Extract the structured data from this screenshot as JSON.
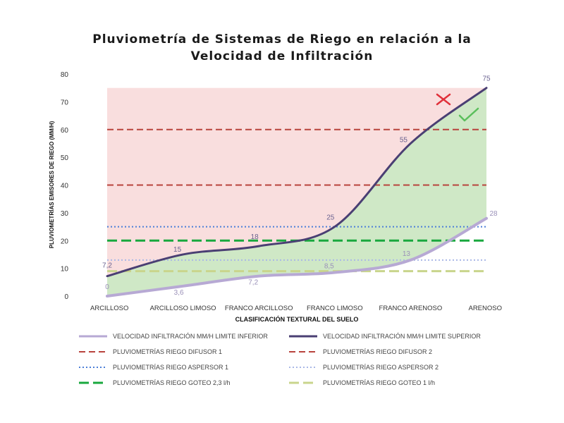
{
  "chart_data": {
    "type": "line",
    "title_line1": "Pluviometría de Sistemas de Riego en relación a la",
    "title_line2": "Velocidad de Infiltración",
    "xlabel": "CLASIFICACIÓN TEXTURAL DEL SUELO",
    "ylabel": "PLUVIOMETRÍAS EMISORES DE RIEGO (MM/H)",
    "ylim": [
      0,
      80
    ],
    "yticks": [
      "0",
      "10",
      "20",
      "30",
      "40",
      "50",
      "60",
      "70",
      "80"
    ],
    "categories": [
      "ARCILLOSO",
      "ARCILLOSO LIMOSO",
      "FRANCO ARCILLOSO",
      "FRANCO LIMOSO",
      "FRANCO ARENOSO",
      "ARENOSO"
    ],
    "series": [
      {
        "name": "VELOCIDAD INFILTRACIÓN MM/H LIMITE INFERIOR",
        "values": [
          0,
          3.6,
          7.2,
          8.5,
          13,
          28
        ],
        "labels": [
          "0",
          "3,6",
          "7,2",
          "8,5",
          "13",
          "28"
        ],
        "color": "#b7a9d4",
        "style": "solid"
      },
      {
        "name": "VELOCIDAD INFILTRACIÓN MM/H LIMITE SUPERIOR",
        "values": [
          7.2,
          15,
          18,
          25,
          55,
          75
        ],
        "labels": [
          "7,2",
          "15",
          "18",
          "25",
          "55",
          "75"
        ],
        "color": "#4a3f73",
        "style": "solid"
      },
      {
        "name": "PLUVIOMETRÍAS RIEGO DIFUSOR 1",
        "value": 60,
        "color": "#b8433c",
        "style": "dashed"
      },
      {
        "name": "PLUVIOMETRÍAS RIEGO DIFUSOR 2",
        "value": 40,
        "color": "#b8433c",
        "style": "dashed"
      },
      {
        "name": "PLUVIOMETRÍAS RIEGO ASPERSOR 1",
        "value": 25,
        "color": "#4c7fd8",
        "style": "dotted"
      },
      {
        "name": "PLUVIOMETRÍAS RIEGO ASPERSOR 2",
        "value": 13,
        "color": "#a9b8e6",
        "style": "dotted"
      },
      {
        "name": "PLUVIOMETRÍAS RIEGO GOTEO 2,3 l/h",
        "value": 20,
        "color": "#19a83e",
        "style": "longdash"
      },
      {
        "name": "PLUVIOMETRÍAS RIEGO GOTEO 1 l/h",
        "value": 9,
        "color": "#c9d58c",
        "style": "longdash"
      }
    ],
    "regions": {
      "above_upper": "#f9dede",
      "between_limits": "#cfe8c6"
    },
    "markers": [
      {
        "type": "cross",
        "meaning": "unsuitable",
        "color": "#e0303a"
      },
      {
        "type": "check",
        "meaning": "suitable",
        "color": "#5bbf5c"
      }
    ],
    "grid": false,
    "legend_position": "bottom"
  }
}
